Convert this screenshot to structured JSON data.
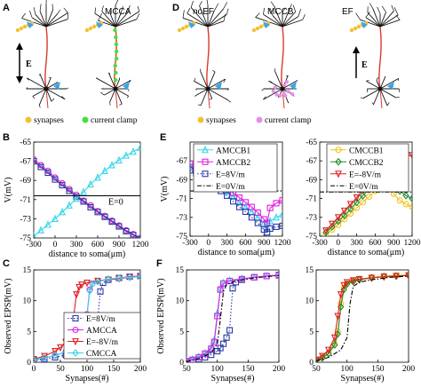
{
  "panel_letters": {
    "A": "A",
    "B": "B",
    "C": "C",
    "D": "D",
    "E": "E",
    "F": "F"
  },
  "neuron_panels": {
    "A": {
      "titles": [
        "",
        "MCCA"
      ],
      "legend": {
        "synapses": "synapses",
        "current_clamp": "current clamp"
      },
      "field_label": "E"
    },
    "D": {
      "titles": [
        "noEF",
        "MCCB",
        "EF"
      ],
      "legend": {
        "synapses": "synapses",
        "current_clamp": "current clamp"
      },
      "field_label": "E"
    }
  },
  "colors": {
    "synapse": "#f2c037",
    "clamp_A": "#4ade3a",
    "clamp_D": "#e58fe8",
    "soma_marker": "#37a6e8",
    "axon": "#d93a2c"
  },
  "chart_data": [
    {
      "id": "B",
      "type": "line",
      "xlabel": "distance to soma(μm)",
      "ylabel": "V(mV)",
      "xlim": [
        -300,
        1200
      ],
      "ylim": [
        -75,
        -65
      ],
      "xticks": [
        "-300",
        "0",
        "300",
        "600",
        "900",
        "1200"
      ],
      "yticks": [
        "-65",
        "-67",
        "-69",
        "-71",
        "-73",
        "-75"
      ],
      "annotation": "E=0",
      "series": [
        {
          "color": "#e020e0",
          "marker": "circle",
          "x": [
            -300,
            -200,
            -100,
            0,
            100,
            200,
            300,
            400,
            500,
            600,
            700,
            800,
            900,
            1000,
            1100,
            1200
          ],
          "y": [
            -66.8,
            -67.4,
            -68.0,
            -68.7,
            -69.3,
            -69.9,
            -70.5,
            -71.1,
            -71.6,
            -72.2,
            -72.7,
            -73.2,
            -73.7,
            -74.2,
            -74.6,
            -75.0
          ]
        },
        {
          "color": "#2a3a9a",
          "marker": "square",
          "x": [
            -300,
            -200,
            -100,
            0,
            100,
            200,
            300,
            400,
            500,
            600,
            700,
            800,
            900,
            1000,
            1100,
            1200
          ],
          "y": [
            -67.0,
            -67.6,
            -68.2,
            -68.9,
            -69.5,
            -70.1,
            -70.7,
            -71.2,
            -71.8,
            -72.3,
            -72.8,
            -73.3,
            -73.8,
            -74.3,
            -74.7,
            -75.1
          ]
        },
        {
          "color": "#33d6e6",
          "marker": "triangle",
          "x": [
            -300,
            -200,
            -100,
            0,
            100,
            200,
            300,
            400,
            500,
            600,
            700,
            800,
            900,
            1000,
            1100,
            1200
          ],
          "y": [
            -74.8,
            -74.2,
            -73.6,
            -73.0,
            -72.3,
            -71.6,
            -70.9,
            -70.2,
            -69.4,
            -68.7,
            -68.0,
            -67.4,
            -66.9,
            -66.4,
            -66.0,
            -65.6
          ]
        },
        {
          "color": "#000000",
          "marker": "none",
          "style": "solid",
          "x": [
            -300,
            1200
          ],
          "y": [
            -70.6,
            -70.6
          ]
        }
      ]
    },
    {
      "id": "C",
      "type": "line",
      "xlabel": "Synapses(#)",
      "ylabel": "Observed EPSP(mV)",
      "xlim": [
        0,
        200
      ],
      "ylim": [
        0,
        15
      ],
      "xticks": [
        "0",
        "50",
        "100",
        "150",
        "200"
      ],
      "yticks": [
        "0",
        "5",
        "10",
        "15"
      ],
      "series": [
        {
          "name": "E=8V/m",
          "color": "#2a3aa8",
          "marker": "square",
          "style": "dotted",
          "x": [
            0,
            20,
            40,
            60,
            80,
            100,
            110,
            115,
            120,
            125,
            130,
            140,
            160,
            180,
            200
          ],
          "y": [
            0.3,
            0.5,
            0.8,
            1.2,
            1.8,
            2.6,
            3.1,
            3.8,
            7.0,
            11.5,
            12.9,
            13.4,
            13.7,
            13.9,
            14.0
          ]
        },
        {
          "name": "AMCCA",
          "color": "#e020e0",
          "marker": "circle",
          "style": "solid",
          "x": [
            0,
            20,
            40,
            60,
            80,
            90,
            95,
            100,
            105,
            110,
            120,
            140,
            160,
            180,
            200
          ],
          "y": [
            0.4,
            0.7,
            1.1,
            1.7,
            2.7,
            3.6,
            4.6,
            7.8,
            11.8,
            12.8,
            13.2,
            13.5,
            13.7,
            13.9,
            14.0
          ]
        },
        {
          "name": "E=-8V/m",
          "color": "#e02020",
          "marker": "triangle-down",
          "style": "solid",
          "x": [
            0,
            20,
            40,
            50,
            60,
            70,
            75,
            80,
            85,
            90,
            100,
            120,
            140,
            160,
            180,
            200
          ],
          "y": [
            0.5,
            1.0,
            1.8,
            2.4,
            3.3,
            4.8,
            7.5,
            11.0,
            12.2,
            12.6,
            12.9,
            13.2,
            13.4,
            13.6,
            13.8,
            13.9
          ]
        },
        {
          "name": "CMCCA",
          "color": "#33d6e6",
          "marker": "diamond",
          "style": "solid",
          "x": [
            0,
            20,
            40,
            60,
            80,
            90,
            95,
            100,
            105,
            110,
            120,
            140,
            160,
            180,
            200
          ],
          "y": [
            0.4,
            0.7,
            1.1,
            1.7,
            2.6,
            3.5,
            4.5,
            7.6,
            11.6,
            12.7,
            13.1,
            13.5,
            13.7,
            13.8,
            13.9
          ]
        }
      ]
    },
    {
      "id": "E1",
      "type": "line",
      "xlabel": "distance to soma(μm)",
      "ylabel": "V(mV)",
      "xlim": [
        -300,
        1200
      ],
      "ylim": [
        -75,
        -65
      ],
      "xticks": [
        "-300",
        "0",
        "300",
        "600",
        "900",
        "1200"
      ],
      "yticks": [
        "-67",
        "-69",
        "-71",
        "-73",
        "-75"
      ],
      "series": [
        {
          "name": "AMCCB1",
          "color": "#33d6e6",
          "marker": "triangle",
          "style": "solid",
          "x": [
            -300,
            -200,
            -100,
            0,
            100,
            200,
            300,
            400,
            500,
            600,
            700,
            800,
            900,
            950,
            1000,
            1100,
            1200
          ],
          "y": [
            -67.6,
            -67.9,
            -68.3,
            -68.8,
            -69.3,
            -69.8,
            -70.3,
            -70.8,
            -71.4,
            -71.9,
            -72.4,
            -73.0,
            -73.6,
            -74.0,
            -73.4,
            -73.0,
            -72.7
          ]
        },
        {
          "name": "AMCCB2",
          "color": "#e020e0",
          "marker": "square",
          "style": "solid",
          "x": [
            -300,
            -200,
            -100,
            0,
            100,
            200,
            300,
            400,
            500,
            600,
            700,
            800,
            900,
            950,
            1000,
            1100,
            1200
          ],
          "y": [
            -67.3,
            -67.6,
            -68.0,
            -68.4,
            -68.9,
            -69.4,
            -69.9,
            -70.4,
            -70.9,
            -71.4,
            -71.9,
            -72.5,
            -73.2,
            -73.6,
            -72.0,
            -71.5,
            -71.2
          ]
        },
        {
          "name": "E=8V/m",
          "color": "#2a3aa8",
          "marker": "square",
          "style": "dotted",
          "x": [
            -300,
            -200,
            -100,
            0,
            100,
            200,
            300,
            400,
            500,
            600,
            700,
            800,
            900,
            950,
            1000,
            1100,
            1200
          ],
          "y": [
            -68.0,
            -68.3,
            -68.7,
            -69.2,
            -69.7,
            -70.2,
            -70.7,
            -71.3,
            -71.9,
            -72.4,
            -73.0,
            -73.6,
            -74.3,
            -74.6,
            -74.2,
            -74.0,
            -73.9
          ]
        },
        {
          "name": "E=0V/m",
          "color": "#000000",
          "marker": "none",
          "style": "dashdot",
          "x": [
            -300,
            1200
          ],
          "y": [
            -70.2,
            -70.2
          ]
        }
      ]
    },
    {
      "id": "E2",
      "type": "line",
      "xlabel": "distance to soma(μm)",
      "ylabel": "",
      "xlim": [
        -300,
        1200
      ],
      "ylim": [
        -75,
        -65
      ],
      "xticks": [
        "-300",
        "0",
        "300",
        "600",
        "900",
        "1200"
      ],
      "yticks": [
        "-65",
        "-67",
        "-69",
        "-71",
        "-73",
        "-75"
      ],
      "series": [
        {
          "name": "CMCCB1",
          "color": "#f2c21a",
          "marker": "circle",
          "style": "solid",
          "x": [
            -200,
            -100,
            0,
            100,
            200,
            300,
            400,
            500,
            600,
            700,
            800,
            850,
            900,
            1000,
            1100,
            1200
          ],
          "y": [
            -74.8,
            -74.3,
            -73.8,
            -73.2,
            -72.6,
            -72.0,
            -71.4,
            -70.8,
            -70.2,
            -69.6,
            -69.0,
            -68.6,
            -70.5,
            -71.2,
            -71.6,
            -71.9
          ]
        },
        {
          "name": "CMCCB2",
          "color": "#1f8a2a",
          "marker": "diamond",
          "style": "solid",
          "x": [
            -200,
            -100,
            0,
            100,
            200,
            300,
            400,
            500,
            600,
            700,
            800,
            850,
            900,
            1000,
            1100,
            1200
          ],
          "y": [
            -74.6,
            -74.0,
            -73.4,
            -72.8,
            -72.1,
            -71.4,
            -70.7,
            -70.0,
            -69.2,
            -68.4,
            -67.6,
            -67.2,
            -69.4,
            -70.2,
            -70.7,
            -71.0
          ]
        },
        {
          "name": "E=-8V/m",
          "color": "#e02020",
          "marker": "triangle-down",
          "style": "solid",
          "x": [
            -200,
            -100,
            0,
            100,
            200,
            300,
            400,
            500,
            600,
            700,
            800,
            900,
            1000,
            1100,
            1200
          ],
          "y": [
            -74.4,
            -73.7,
            -73.0,
            -72.3,
            -71.6,
            -70.9,
            -70.1,
            -69.3,
            -68.5,
            -67.8,
            -67.2,
            -66.8,
            -66.6,
            -66.5,
            -66.4
          ]
        },
        {
          "name": "E=0V/m",
          "color": "#000000",
          "marker": "none",
          "style": "dashdot",
          "x": [
            -300,
            1200
          ],
          "y": [
            -70.3,
            -70.3
          ]
        }
      ]
    },
    {
      "id": "F1",
      "type": "line",
      "xlabel": "Synapses(#)",
      "ylabel": "Observed EPSP(mV)",
      "xlim": [
        50,
        200
      ],
      "ylim": [
        0,
        15
      ],
      "xticks": [
        "50",
        "100",
        "150",
        "200"
      ],
      "yticks": [
        "0",
        "5",
        "10",
        "15"
      ],
      "series": [
        {
          "color": "#2a3aa8",
          "marker": "square",
          "style": "dotted",
          "x": [
            50,
            60,
            70,
            80,
            90,
            100,
            105,
            110,
            115,
            120,
            125,
            130,
            140,
            160,
            180,
            200
          ],
          "y": [
            0.1,
            0.3,
            0.5,
            0.8,
            1.2,
            1.8,
            2.3,
            3.0,
            4.0,
            5.2,
            12.0,
            13.0,
            13.4,
            13.8,
            14.0,
            14.2
          ]
        },
        {
          "color": "#33d6e6",
          "marker": "triangle",
          "style": "solid",
          "x": [
            50,
            60,
            70,
            80,
            90,
            95,
            100,
            105,
            110,
            120,
            140,
            160,
            180,
            200
          ],
          "y": [
            0.2,
            0.5,
            0.9,
            1.5,
            2.4,
            3.6,
            8.0,
            12.0,
            12.9,
            13.3,
            13.6,
            13.8,
            14.0,
            14.1
          ]
        },
        {
          "color": "#e020e0",
          "marker": "square",
          "style": "solid",
          "x": [
            50,
            60,
            70,
            80,
            90,
            95,
            100,
            105,
            110,
            120,
            140,
            160,
            180,
            200
          ],
          "y": [
            0.2,
            0.4,
            0.8,
            1.4,
            2.2,
            3.3,
            7.5,
            11.8,
            12.8,
            13.2,
            13.5,
            13.8,
            14.0,
            14.1
          ]
        },
        {
          "color": "#000000",
          "marker": "none",
          "style": "dashdot",
          "x": [
            50,
            70,
            90,
            100,
            105,
            110,
            115,
            130,
            160,
            200
          ],
          "y": [
            0.1,
            0.6,
            1.5,
            3.0,
            7.0,
            11.5,
            12.6,
            13.2,
            13.7,
            14.1
          ]
        }
      ]
    },
    {
      "id": "F2",
      "type": "line",
      "xlabel": "Synapses(#)",
      "ylabel": "",
      "xlim": [
        50,
        200
      ],
      "ylim": [
        0,
        15
      ],
      "xticks": [
        "50",
        "100",
        "150",
        "200"
      ],
      "yticks": [
        "0",
        "5",
        "10",
        "15"
      ],
      "series": [
        {
          "color": "#f2c21a",
          "marker": "circle",
          "style": "solid",
          "x": [
            50,
            60,
            70,
            80,
            85,
            90,
            95,
            100,
            110,
            120,
            140,
            160,
            180,
            200
          ],
          "y": [
            0.3,
            0.8,
            1.5,
            3.0,
            5.0,
            9.5,
            12.0,
            12.8,
            13.2,
            13.5,
            13.8,
            14.0,
            14.1,
            14.2
          ]
        },
        {
          "color": "#1f8a2a",
          "marker": "diamond",
          "style": "solid",
          "x": [
            50,
            60,
            70,
            80,
            85,
            90,
            95,
            100,
            110,
            120,
            140,
            160,
            180,
            200
          ],
          "y": [
            0.3,
            0.7,
            1.4,
            2.8,
            4.6,
            9.0,
            11.8,
            12.7,
            13.1,
            13.4,
            13.7,
            13.9,
            14.0,
            14.1
          ]
        },
        {
          "color": "#e02020",
          "marker": "triangle-down",
          "style": "solid",
          "x": [
            50,
            60,
            70,
            80,
            85,
            90,
            95,
            100,
            110,
            120,
            140,
            160,
            180,
            200
          ],
          "y": [
            0.4,
            1.0,
            2.0,
            4.0,
            7.5,
            11.0,
            12.5,
            13.0,
            13.3,
            13.5,
            13.7,
            13.9,
            14.0,
            14.1
          ]
        },
        {
          "color": "#000000",
          "marker": "none",
          "style": "dashdot",
          "x": [
            50,
            70,
            90,
            100,
            105,
            110,
            120,
            140,
            170,
            200
          ],
          "y": [
            0.2,
            0.8,
            2.0,
            4.0,
            9.5,
            12.3,
            13.0,
            13.4,
            13.8,
            14.0
          ]
        }
      ]
    }
  ]
}
